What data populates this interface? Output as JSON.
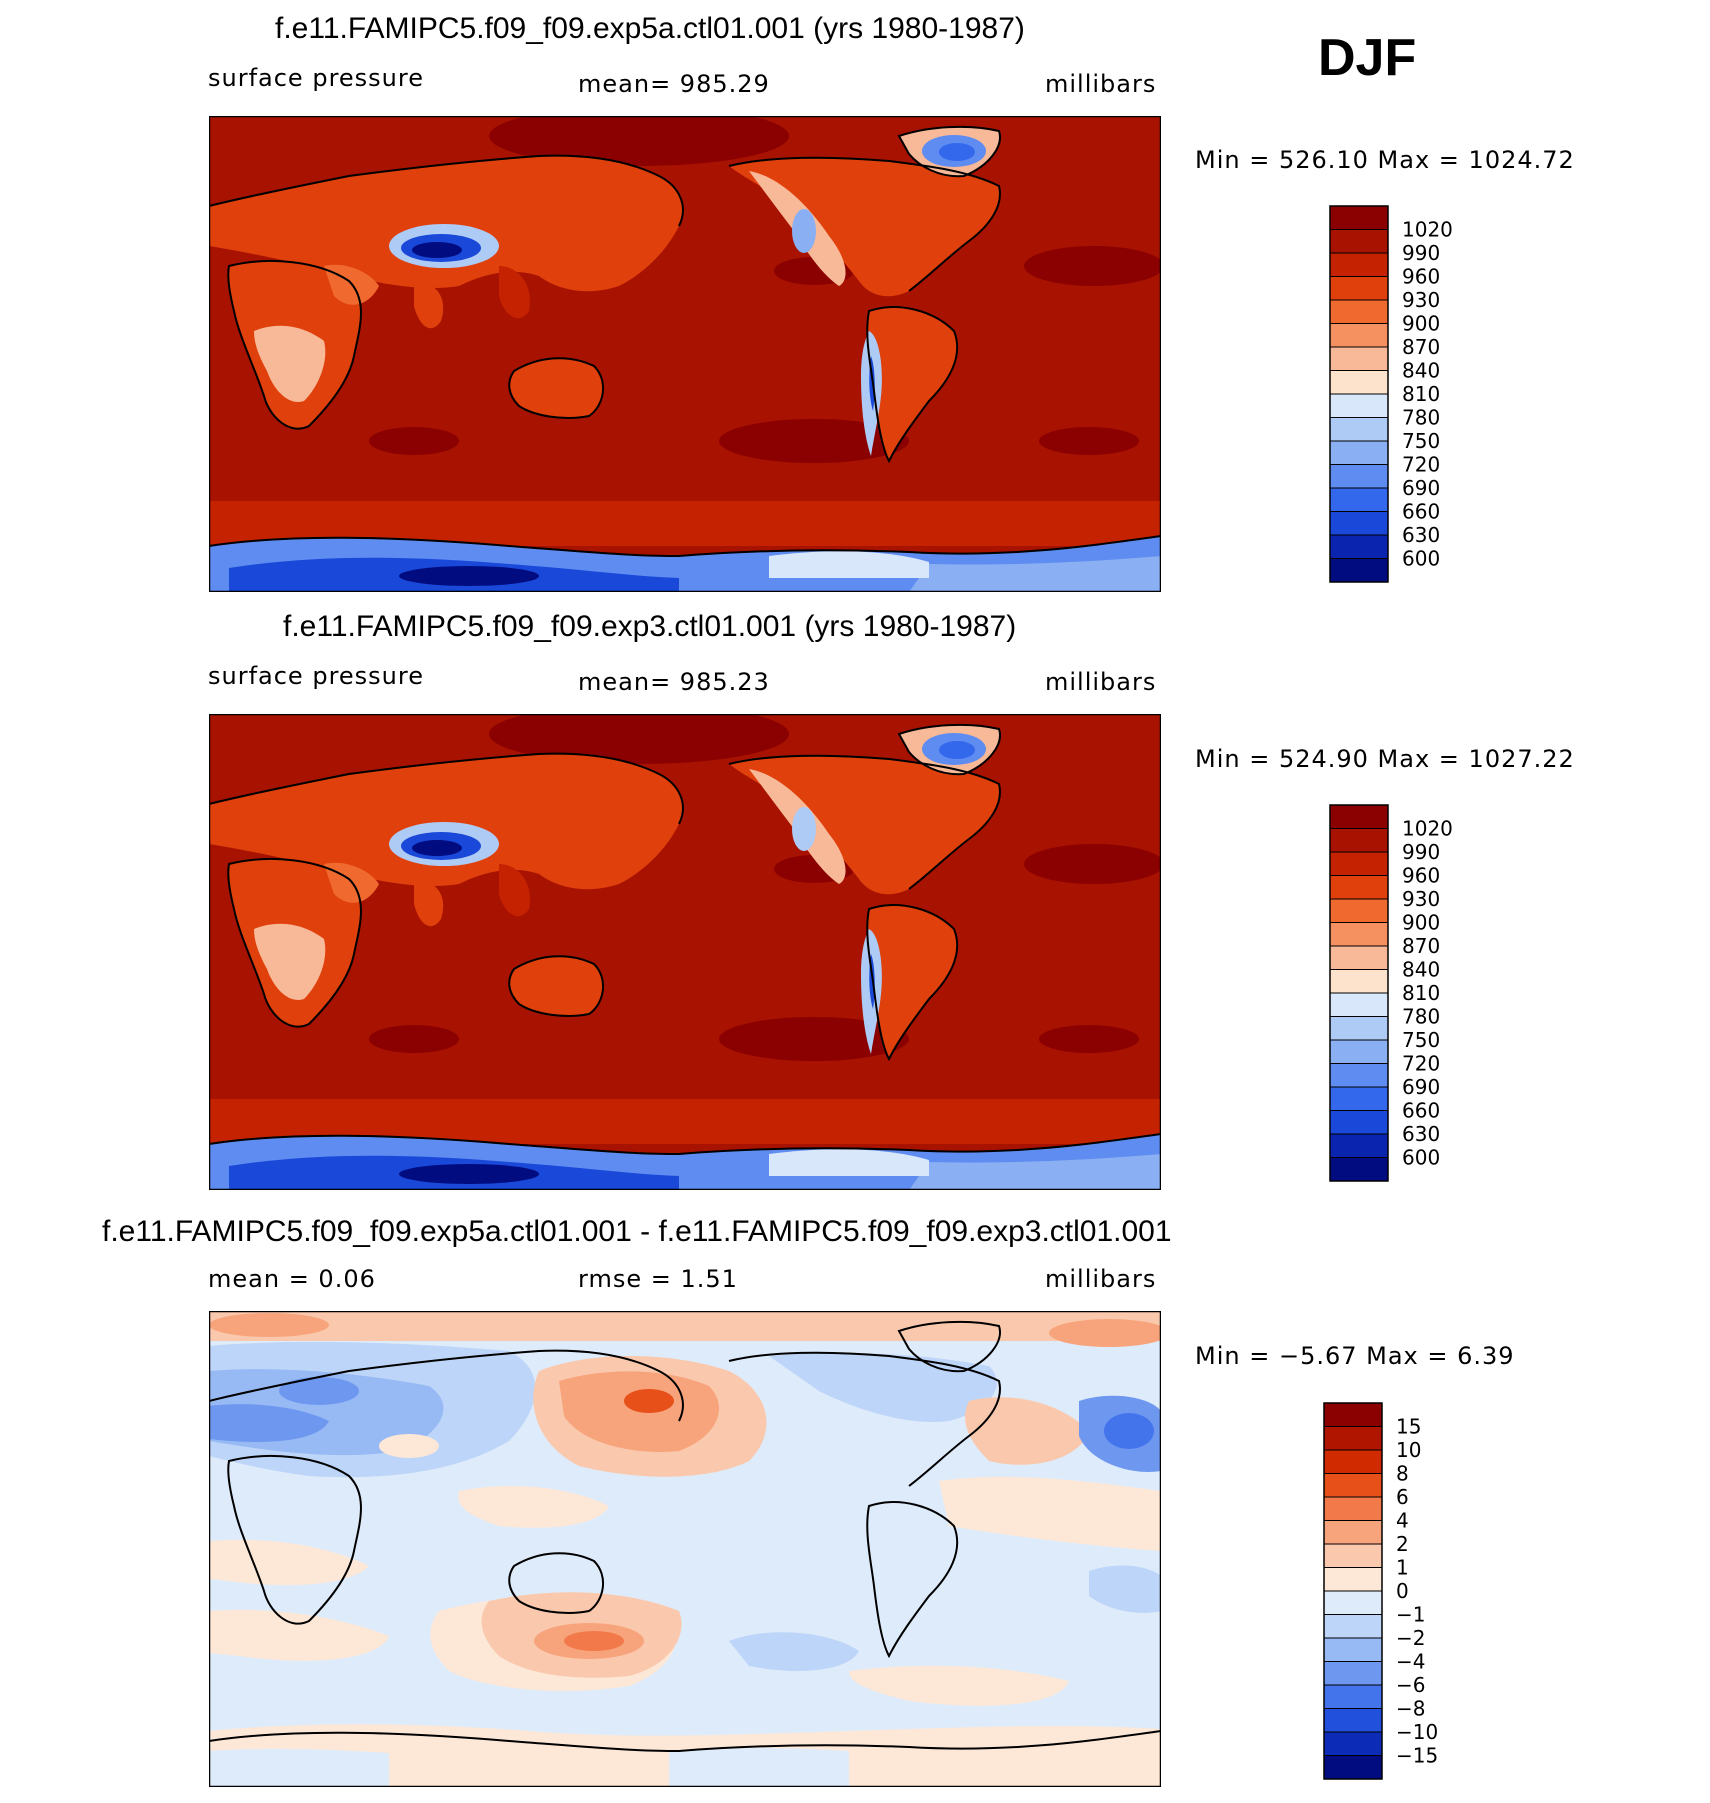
{
  "season": "DJF",
  "panels": [
    {
      "title": "f.e11.FAMIPC5.f09_f09.exp5a.ctl01.001 (yrs 1980-1987)",
      "left_label": "surface pressure",
      "center_label": "mean=  985.29",
      "right_label": "millibars",
      "minmax": "Min  =  526.10  Max  =  1024.72",
      "colorbar": {
        "labels": [
          "1020",
          "990",
          "960",
          "930",
          "900",
          "870",
          "840",
          "810",
          "780",
          "750",
          "720",
          "690",
          "660",
          "630",
          "600"
        ],
        "colors": [
          "#8b0000",
          "#a81200",
          "#c42200",
          "#e0400c",
          "#f06a30",
          "#f59060",
          "#f8b998",
          "#fde3cc",
          "#d8e8fa",
          "#aecbf5",
          "#8aaff2",
          "#5e8cf0",
          "#3468ec",
          "#1a48d8",
          "#0a24b0",
          "#000c80"
        ]
      }
    },
    {
      "title": "f.e11.FAMIPC5.f09_f09.exp3.ctl01.001 (yrs 1980-1987)",
      "left_label": "surface pressure",
      "center_label": "mean=  985.23",
      "right_label": "millibars",
      "minmax": "Min  =  524.90  Max  =  1027.22",
      "colorbar": {
        "labels": [
          "1020",
          "990",
          "960",
          "930",
          "900",
          "870",
          "840",
          "810",
          "780",
          "750",
          "720",
          "690",
          "660",
          "630",
          "600"
        ],
        "colors": [
          "#8b0000",
          "#a81200",
          "#c42200",
          "#e0400c",
          "#f06a30",
          "#f59060",
          "#f8b998",
          "#fde3cc",
          "#d8e8fa",
          "#aecbf5",
          "#8aaff2",
          "#5e8cf0",
          "#3468ec",
          "#1a48d8",
          "#0a24b0",
          "#000c80"
        ]
      }
    },
    {
      "title": "f.e11.FAMIPC5.f09_f09.exp5a.ctl01.001 - f.e11.FAMIPC5.f09_f09.exp3.ctl01.001",
      "left_label": "mean  =     0.06",
      "center_label": "rmse  =     1.51",
      "right_label": "millibars",
      "minmax": "Min  =    −5.67  Max  =     6.39",
      "colorbar": {
        "labels": [
          "15",
          "10",
          "8",
          "6",
          "4",
          "2",
          "1",
          "0",
          "−1",
          "−2",
          "−4",
          "−6",
          "−8",
          "−10",
          "−15"
        ],
        "colors": [
          "#8b0000",
          "#b01500",
          "#d02a00",
          "#e8501a",
          "#f27a4a",
          "#f7a47c",
          "#fac9ad",
          "#fde8d8",
          "#deebfb",
          "#bdd5f8",
          "#97b9f4",
          "#6e98f0",
          "#4474ec",
          "#2050dc",
          "#0c2cb8",
          "#000c80"
        ]
      }
    }
  ],
  "chart_data": [
    {
      "type": "heatmap",
      "title": "f.e11.FAMIPC5.f09_f09.exp5a.ctl01.001 (yrs 1980-1987)",
      "variable": "surface pressure",
      "units": "millibars",
      "mean": 985.29,
      "min": 526.1,
      "max": 1024.72,
      "contour_levels": [
        600,
        630,
        660,
        690,
        720,
        750,
        780,
        810,
        840,
        870,
        900,
        930,
        960,
        990,
        1020
      ]
    },
    {
      "type": "heatmap",
      "title": "f.e11.FAMIPC5.f09_f09.exp3.ctl01.001 (yrs 1980-1987)",
      "variable": "surface pressure",
      "units": "millibars",
      "mean": 985.23,
      "min": 524.9,
      "max": 1027.22,
      "contour_levels": [
        600,
        630,
        660,
        690,
        720,
        750,
        780,
        810,
        840,
        870,
        900,
        930,
        960,
        990,
        1020
      ]
    },
    {
      "type": "heatmap",
      "title": "f.e11.FAMIPC5.f09_f09.exp5a.ctl01.001 - f.e11.FAMIPC5.f09_f09.exp3.ctl01.001",
      "units": "millibars",
      "mean": 0.06,
      "rmse": 1.51,
      "min": -5.67,
      "max": 6.39,
      "contour_levels": [
        -15,
        -10,
        -8,
        -6,
        -4,
        -2,
        -1,
        0,
        1,
        2,
        4,
        6,
        8,
        10,
        15
      ]
    }
  ]
}
